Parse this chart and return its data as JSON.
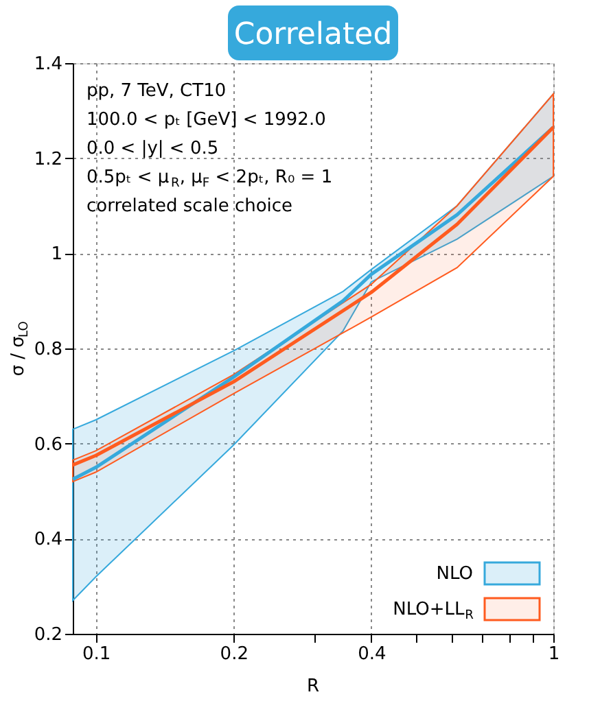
{
  "chart_data": {
    "type": "line",
    "title": "Correlated",
    "xlabel": "R",
    "ylabel": "σ / σ$_{LO}$",
    "log": "x",
    "xlim": [
      0.089,
      1
    ],
    "ylim": [
      0.2,
      1.4
    ],
    "xticks": [
      0.1,
      0.2,
      {
        "value": 0.3,
        "label": null
      },
      0.4,
      {
        "value": 0.5,
        "label": null
      },
      {
        "value": 0.6,
        "label": null
      },
      {
        "value": 0.7,
        "label": null
      },
      {
        "value": 0.8,
        "label": null
      },
      {
        "value": 0.9,
        "label": null
      },
      1
    ],
    "yticks": [
      0.2,
      0.4,
      0.6,
      0.8,
      1,
      1.2,
      1.4
    ],
    "grid": true,
    "legend": "bottom right",
    "series": [
      {
        "name": "NLO",
        "color": "#36a9dc",
        "x": [
          0.089,
          0.1,
          0.2,
          0.347,
          0.4,
          0.616,
          1
        ],
        "values": [
          0.525,
          0.55,
          0.74,
          0.9,
          0.956,
          1.081,
          1.265
        ],
        "lower": [
          0.27,
          0.32,
          0.597,
          0.837,
          0.94,
          1.03,
          1.162
        ],
        "upper": [
          0.63,
          0.65,
          0.795,
          0.92,
          0.966,
          1.1,
          1.335
        ]
      },
      {
        "name": "NLO+LL$_{R}$",
        "color": "#ff5b1f",
        "x": [
          0.089,
          0.1,
          0.2,
          0.4,
          0.616,
          1
        ],
        "values": [
          0.555,
          0.575,
          0.73,
          0.918,
          1.061,
          1.265
        ],
        "lower": [
          0.52,
          0.54,
          0.705,
          0.866,
          0.97,
          1.162
        ],
        "upper": [
          0.565,
          0.585,
          0.745,
          0.935,
          1.1,
          1.335
        ]
      }
    ],
    "annotations": [
      "pp, 7 TeV, CT10",
      "100.0 < pₜ [GeV] < 1992.0",
      "0.0 < |y| < 0.5",
      "0.5pₜ < μ$_{R}$, μ$_{F}$ < 2pₜ, R₀ = 1",
      "correlated scale choice"
    ]
  }
}
